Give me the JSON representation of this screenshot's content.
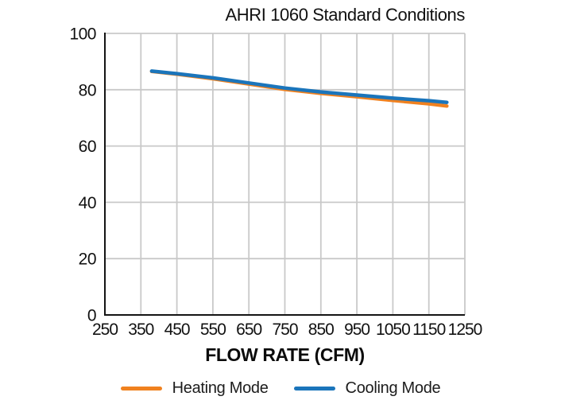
{
  "chart_data": {
    "type": "line",
    "title": "AHRI 1060 Standard Conditions",
    "xlabel": "FLOW RATE (CFM)",
    "ylabel": "",
    "xlim": [
      250,
      1250
    ],
    "ylim": [
      0,
      100
    ],
    "x_ticks": [
      250,
      350,
      450,
      550,
      650,
      750,
      850,
      950,
      1050,
      1150,
      1250
    ],
    "y_ticks": [
      0,
      20,
      40,
      60,
      80,
      100
    ],
    "grid": true,
    "grid_color": "#c9c9c9",
    "axis_color": "#141414",
    "legend_position": "bottom",
    "x": [
      380,
      450,
      550,
      650,
      750,
      850,
      950,
      1050,
      1150,
      1200
    ],
    "series": [
      {
        "name": "Heating Mode",
        "color": "#F0811F",
        "values": [
          86.5,
          85.5,
          83.9,
          82.0,
          80.1,
          78.7,
          77.5,
          76.2,
          75.0,
          74.2
        ]
      },
      {
        "name": "Cooling Mode",
        "color": "#1B75BB",
        "values": [
          86.6,
          85.7,
          84.2,
          82.4,
          80.6,
          79.2,
          78.1,
          77.0,
          76.1,
          75.5
        ]
      }
    ]
  }
}
